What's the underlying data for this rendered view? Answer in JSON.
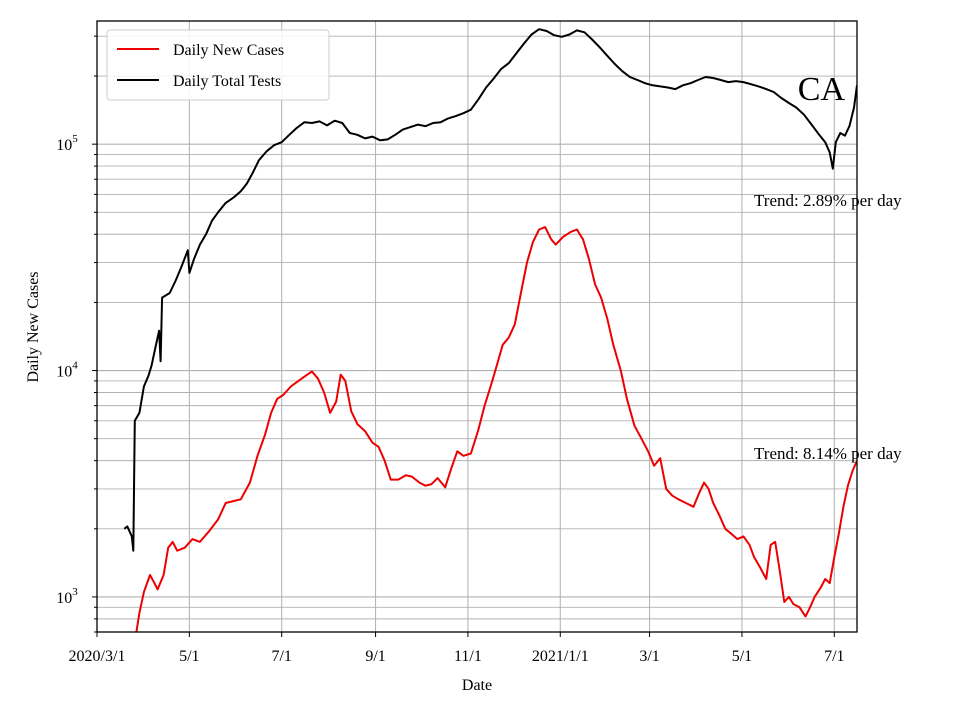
{
  "chart_data": {
    "type": "line",
    "xlabel": "Date",
    "ylabel": "Daily New Cases",
    "y_scale": "log",
    "ylim": [
      700,
      350000
    ],
    "xlim": [
      "2020-03-01",
      "2021-07-16"
    ],
    "grid": true,
    "legend_position": "top-left",
    "x_ticks": [
      {
        "date": "2020-03-01",
        "label": "2020/3/1"
      },
      {
        "date": "2020-05-01",
        "label": "5/1"
      },
      {
        "date": "2020-07-01",
        "label": "7/1"
      },
      {
        "date": "2020-09-01",
        "label": "9/1"
      },
      {
        "date": "2020-11-01",
        "label": "11/1"
      },
      {
        "date": "2021-01-01",
        "label": "2021/1/1"
      },
      {
        "date": "2021-03-01",
        "label": "3/1"
      },
      {
        "date": "2021-05-01",
        "label": "5/1"
      },
      {
        "date": "2021-07-01",
        "label": "7/1"
      }
    ],
    "y_ticks": [
      {
        "value": 1000,
        "base": "10",
        "exp": "3"
      },
      {
        "value": 10000,
        "base": "10",
        "exp": "4"
      },
      {
        "value": 100000,
        "base": "10",
        "exp": "5"
      }
    ],
    "series": [
      {
        "name": "Daily New Cases",
        "color": "#ee0000",
        "points": [
          [
            "2020-03-27",
            700
          ],
          [
            "2020-03-29",
            850
          ],
          [
            "2020-04-01",
            1050
          ],
          [
            "2020-04-05",
            1250
          ],
          [
            "2020-04-08",
            1150
          ],
          [
            "2020-04-10",
            1080
          ],
          [
            "2020-04-14",
            1250
          ],
          [
            "2020-04-17",
            1650
          ],
          [
            "2020-04-20",
            1750
          ],
          [
            "2020-04-23",
            1600
          ],
          [
            "2020-04-28",
            1650
          ],
          [
            "2020-05-03",
            1800
          ],
          [
            "2020-05-08",
            1750
          ],
          [
            "2020-05-14",
            1950
          ],
          [
            "2020-05-20",
            2200
          ],
          [
            "2020-05-25",
            2600
          ],
          [
            "2020-05-30",
            2650
          ],
          [
            "2020-06-04",
            2700
          ],
          [
            "2020-06-10",
            3200
          ],
          [
            "2020-06-15",
            4200
          ],
          [
            "2020-06-20",
            5200
          ],
          [
            "2020-06-24",
            6500
          ],
          [
            "2020-06-28",
            7500
          ],
          [
            "2020-07-02",
            7800
          ],
          [
            "2020-07-07",
            8500
          ],
          [
            "2020-07-12",
            9000
          ],
          [
            "2020-07-17",
            9500
          ],
          [
            "2020-07-21",
            9900
          ],
          [
            "2020-07-25",
            9200
          ],
          [
            "2020-07-29",
            8000
          ],
          [
            "2020-08-02",
            6500
          ],
          [
            "2020-08-06",
            7300
          ],
          [
            "2020-08-09",
            9600
          ],
          [
            "2020-08-12",
            9000
          ],
          [
            "2020-08-16",
            6600
          ],
          [
            "2020-08-20",
            5800
          ],
          [
            "2020-08-25",
            5400
          ],
          [
            "2020-08-30",
            4800
          ],
          [
            "2020-09-03",
            4600
          ],
          [
            "2020-09-07",
            4000
          ],
          [
            "2020-09-11",
            3300
          ],
          [
            "2020-09-16",
            3300
          ],
          [
            "2020-09-21",
            3450
          ],
          [
            "2020-09-25",
            3400
          ],
          [
            "2020-09-30",
            3200
          ],
          [
            "2020-10-04",
            3100
          ],
          [
            "2020-10-08",
            3150
          ],
          [
            "2020-10-12",
            3350
          ],
          [
            "2020-10-17",
            3050
          ],
          [
            "2020-10-21",
            3700
          ],
          [
            "2020-10-25",
            4400
          ],
          [
            "2020-10-29",
            4200
          ],
          [
            "2020-11-03",
            4300
          ],
          [
            "2020-11-08",
            5500
          ],
          [
            "2020-11-12",
            7000
          ],
          [
            "2020-11-16",
            8500
          ],
          [
            "2020-11-20",
            10500
          ],
          [
            "2020-11-24",
            13000
          ],
          [
            "2020-11-28",
            14000
          ],
          [
            "2020-12-02",
            16000
          ],
          [
            "2020-12-06",
            22000
          ],
          [
            "2020-12-10",
            30000
          ],
          [
            "2020-12-14",
            37000
          ],
          [
            "2020-12-18",
            42000
          ],
          [
            "2020-12-22",
            43000
          ],
          [
            "2020-12-26",
            38000
          ],
          [
            "2020-12-29",
            36000
          ],
          [
            "2021-01-03",
            39000
          ],
          [
            "2021-01-08",
            41000
          ],
          [
            "2021-01-12",
            42000
          ],
          [
            "2021-01-16",
            38000
          ],
          [
            "2021-01-20",
            31000
          ],
          [
            "2021-01-24",
            24000
          ],
          [
            "2021-01-28",
            21000
          ],
          [
            "2021-02-01",
            17000
          ],
          [
            "2021-02-05",
            13000
          ],
          [
            "2021-02-10",
            10000
          ],
          [
            "2021-02-14",
            7500
          ],
          [
            "2021-02-19",
            5700
          ],
          [
            "2021-02-23",
            5100
          ],
          [
            "2021-02-28",
            4400
          ],
          [
            "2021-03-04",
            3800
          ],
          [
            "2021-03-08",
            4100
          ],
          [
            "2021-03-12",
            3000
          ],
          [
            "2021-03-16",
            2800
          ],
          [
            "2021-03-20",
            2700
          ],
          [
            "2021-03-25",
            2600
          ],
          [
            "2021-03-30",
            2500
          ],
          [
            "2021-04-03",
            2900
          ],
          [
            "2021-04-06",
            3200
          ],
          [
            "2021-04-09",
            3000
          ],
          [
            "2021-04-12",
            2600
          ],
          [
            "2021-04-16",
            2300
          ],
          [
            "2021-04-20",
            2000
          ],
          [
            "2021-04-24",
            1900
          ],
          [
            "2021-04-28",
            1800
          ],
          [
            "2021-05-02",
            1850
          ],
          [
            "2021-05-06",
            1700
          ],
          [
            "2021-05-09",
            1500
          ],
          [
            "2021-05-13",
            1350
          ],
          [
            "2021-05-17",
            1200
          ],
          [
            "2021-05-20",
            1700
          ],
          [
            "2021-05-23",
            1750
          ],
          [
            "2021-05-26",
            1300
          ],
          [
            "2021-05-29",
            950
          ],
          [
            "2021-06-01",
            1000
          ],
          [
            "2021-06-04",
            930
          ],
          [
            "2021-06-08",
            900
          ],
          [
            "2021-06-12",
            820
          ],
          [
            "2021-06-15",
            900
          ],
          [
            "2021-06-18",
            1000
          ],
          [
            "2021-06-22",
            1100
          ],
          [
            "2021-06-25",
            1200
          ],
          [
            "2021-06-28",
            1150
          ],
          [
            "2021-07-01",
            1500
          ],
          [
            "2021-07-04",
            1900
          ],
          [
            "2021-07-07",
            2500
          ],
          [
            "2021-07-10",
            3100
          ],
          [
            "2021-07-13",
            3600
          ],
          [
            "2021-07-16",
            4000
          ]
        ],
        "trend_label": "Trend: 8.14% per day"
      },
      {
        "name": "Daily Total Tests",
        "color": "#000000",
        "points": [
          [
            "2020-03-19",
            2000
          ],
          [
            "2020-03-21",
            2050
          ],
          [
            "2020-03-24",
            1850
          ],
          [
            "2020-03-25",
            1600
          ],
          [
            "2020-03-26",
            6000
          ],
          [
            "2020-03-29",
            6500
          ],
          [
            "2020-04-01",
            8500
          ],
          [
            "2020-04-04",
            9500
          ],
          [
            "2020-04-06",
            10500
          ],
          [
            "2020-04-09",
            13000
          ],
          [
            "2020-04-11",
            15000
          ],
          [
            "2020-04-12",
            11000
          ],
          [
            "2020-04-13",
            21000
          ],
          [
            "2020-04-18",
            22000
          ],
          [
            "2020-04-22",
            25000
          ],
          [
            "2020-04-26",
            29000
          ],
          [
            "2020-04-30",
            34000
          ],
          [
            "2020-05-01",
            27000
          ],
          [
            "2020-05-04",
            31000
          ],
          [
            "2020-05-08",
            36000
          ],
          [
            "2020-05-12",
            40000
          ],
          [
            "2020-05-16",
            46000
          ],
          [
            "2020-05-20",
            50000
          ],
          [
            "2020-05-25",
            55000
          ],
          [
            "2020-05-30",
            58000
          ],
          [
            "2020-06-04",
            62000
          ],
          [
            "2020-06-08",
            67000
          ],
          [
            "2020-06-12",
            75000
          ],
          [
            "2020-06-16",
            85000
          ],
          [
            "2020-06-21",
            93000
          ],
          [
            "2020-06-26",
            99000
          ],
          [
            "2020-07-01",
            102000
          ],
          [
            "2020-07-06",
            110000
          ],
          [
            "2020-07-11",
            118000
          ],
          [
            "2020-07-16",
            125000
          ],
          [
            "2020-07-21",
            124000
          ],
          [
            "2020-07-26",
            126000
          ],
          [
            "2020-07-31",
            121000
          ],
          [
            "2020-08-05",
            127000
          ],
          [
            "2020-08-10",
            124000
          ],
          [
            "2020-08-15",
            112000
          ],
          [
            "2020-08-20",
            110000
          ],
          [
            "2020-08-25",
            106000
          ],
          [
            "2020-08-30",
            108000
          ],
          [
            "2020-09-04",
            104000
          ],
          [
            "2020-09-09",
            105000
          ],
          [
            "2020-09-14",
            110000
          ],
          [
            "2020-09-19",
            116000
          ],
          [
            "2020-09-24",
            119000
          ],
          [
            "2020-09-29",
            122000
          ],
          [
            "2020-10-04",
            120000
          ],
          [
            "2020-10-09",
            124000
          ],
          [
            "2020-10-14",
            125000
          ],
          [
            "2020-10-19",
            130000
          ],
          [
            "2020-10-24",
            133000
          ],
          [
            "2020-10-29",
            137000
          ],
          [
            "2020-11-03",
            142000
          ],
          [
            "2020-11-08",
            158000
          ],
          [
            "2020-11-13",
            178000
          ],
          [
            "2020-11-18",
            195000
          ],
          [
            "2020-11-23",
            215000
          ],
          [
            "2020-11-28",
            228000
          ],
          [
            "2020-12-03",
            252000
          ],
          [
            "2020-12-08",
            278000
          ],
          [
            "2020-12-13",
            305000
          ],
          [
            "2020-12-18",
            322000
          ],
          [
            "2020-12-23",
            316000
          ],
          [
            "2020-12-28",
            303000
          ],
          [
            "2021-01-02",
            298000
          ],
          [
            "2021-01-07",
            305000
          ],
          [
            "2021-01-12",
            318000
          ],
          [
            "2021-01-17",
            312000
          ],
          [
            "2021-01-22",
            290000
          ],
          [
            "2021-01-27",
            268000
          ],
          [
            "2021-02-01",
            246000
          ],
          [
            "2021-02-06",
            226000
          ],
          [
            "2021-02-11",
            210000
          ],
          [
            "2021-02-16",
            198000
          ],
          [
            "2021-02-21",
            192000
          ],
          [
            "2021-02-26",
            186000
          ],
          [
            "2021-03-03",
            182000
          ],
          [
            "2021-03-08",
            180000
          ],
          [
            "2021-03-13",
            178000
          ],
          [
            "2021-03-18",
            175000
          ],
          [
            "2021-03-23",
            182000
          ],
          [
            "2021-03-28",
            186000
          ],
          [
            "2021-04-02",
            192000
          ],
          [
            "2021-04-07",
            198000
          ],
          [
            "2021-04-12",
            196000
          ],
          [
            "2021-04-17",
            192000
          ],
          [
            "2021-04-22",
            188000
          ],
          [
            "2021-04-27",
            190000
          ],
          [
            "2021-05-02",
            188000
          ],
          [
            "2021-05-07",
            184000
          ],
          [
            "2021-05-12",
            180000
          ],
          [
            "2021-05-17",
            175000
          ],
          [
            "2021-05-22",
            170000
          ],
          [
            "2021-05-27",
            160000
          ],
          [
            "2021-06-01",
            152000
          ],
          [
            "2021-06-06",
            145000
          ],
          [
            "2021-06-11",
            135000
          ],
          [
            "2021-06-16",
            122000
          ],
          [
            "2021-06-21",
            110000
          ],
          [
            "2021-06-25",
            102000
          ],
          [
            "2021-06-28",
            92000
          ],
          [
            "2021-06-30",
            78000
          ],
          [
            "2021-07-02",
            102000
          ],
          [
            "2021-07-05",
            112000
          ],
          [
            "2021-07-08",
            109000
          ],
          [
            "2021-07-11",
            120000
          ],
          [
            "2021-07-14",
            145000
          ],
          [
            "2021-07-16",
            182000
          ]
        ],
        "trend_label": "Trend: 2.89% per day"
      }
    ],
    "annotations": [
      {
        "text": "CA",
        "kind": "state-label"
      }
    ]
  }
}
